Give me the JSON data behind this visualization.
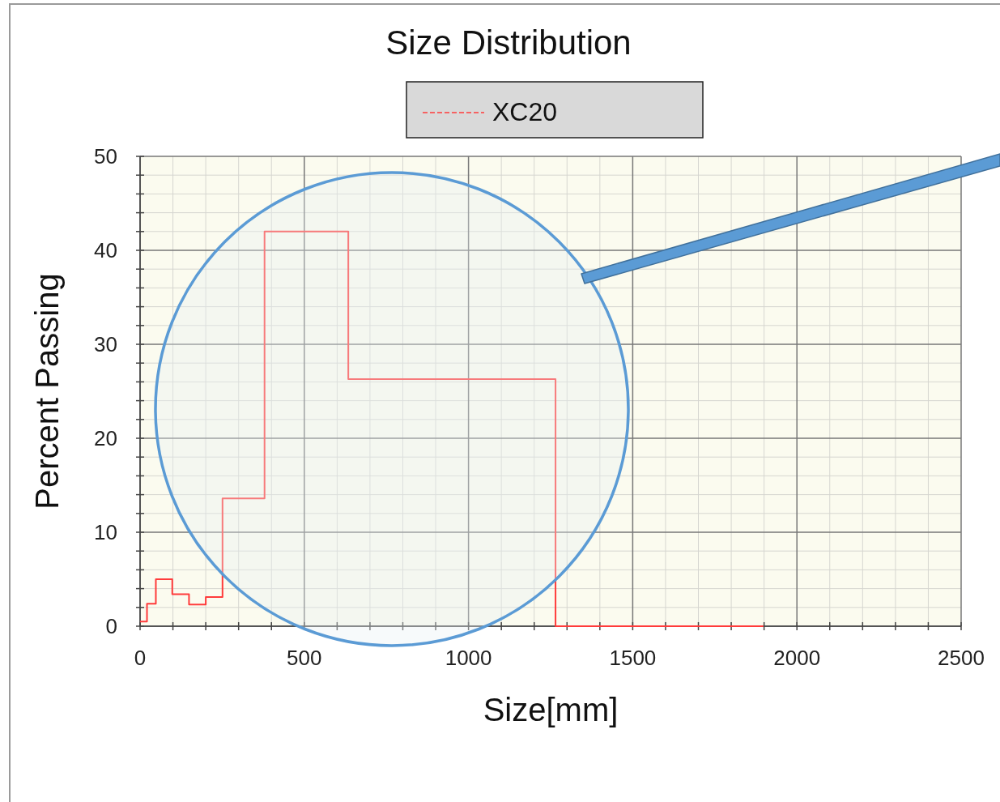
{
  "chart_data": {
    "type": "step",
    "title": "Size Distribution",
    "xlabel": "Size[mm]",
    "ylabel": "Percent Passing",
    "x": [
      0,
      21,
      48,
      98,
      149,
      200,
      251,
      379,
      634,
      1265,
      1898
    ],
    "series": [
      {
        "name": "XC20",
        "color": "#ff3b3b",
        "values": [
          0.5,
          2.4,
          5.0,
          3.4,
          2.3,
          3.1,
          13.6,
          42,
          26.3,
          0,
          0
        ]
      }
    ],
    "xlim": [
      0,
      2500
    ],
    "xticks": [
      0,
      500,
      1000,
      1500,
      2000,
      2500
    ],
    "ylim": [
      0,
      50
    ],
    "yticks": [
      0,
      10,
      20,
      30,
      40,
      50
    ],
    "grid": true,
    "legend": "top"
  }
}
